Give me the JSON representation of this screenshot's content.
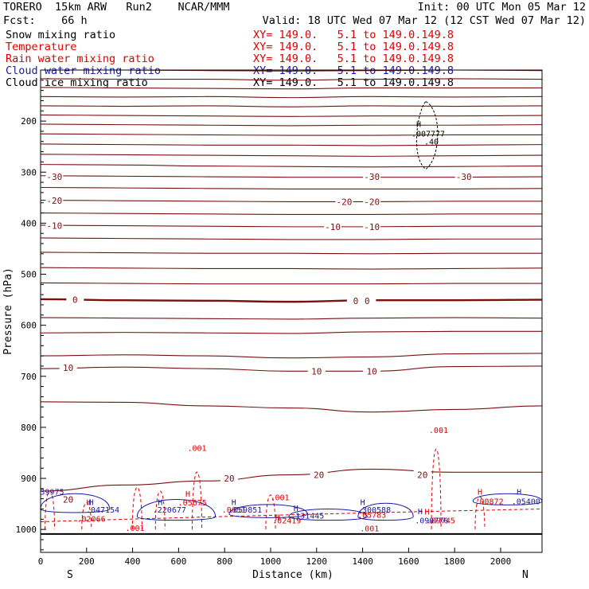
{
  "header": {
    "model": "TORERO  15km ARW   Run2    NCAR/MMM",
    "init": "Init: 00 UTC Mon 05 Mar 12",
    "fcst": "Fcst:    66 h",
    "valid": "Valid: 18 UTC Wed 07 Mar 12 (12 CST Wed 07 Mar 12)"
  },
  "legend": [
    {
      "label": "Snow mixing ratio",
      "xy": "XY= 149.0.   5.1 to 149.0.149.8",
      "color": "#000000"
    },
    {
      "label": "Temperature",
      "xy": "XY= 149.0.   5.1 to 149.0.149.8",
      "color": "#dd0000"
    },
    {
      "label": "Rain water mixing ratio",
      "xy": "XY= 149.0.   5.1 to 149.0.149.8",
      "color": "#dd0000"
    },
    {
      "label": "Cloud water mixing ratio",
      "xy": "XY= 149.0.   5.1 to 149.0.149.8",
      "color": "#1a1aaa"
    },
    {
      "label": "Cloud ice mixing ratio",
      "xy": "XY= 149.0.   5.1 to 149.0.149.8",
      "color": "#000000"
    }
  ],
  "chart_data": {
    "type": "cross-section contour",
    "xlabel": "Distance (km)",
    "ylabel": "Pressure (hPa)",
    "xlim": [
      0,
      2180
    ],
    "ylim": [
      1045,
      100
    ],
    "x_ticks": [
      0,
      200,
      400,
      600,
      800,
      1000,
      1200,
      1400,
      1600,
      1800,
      2000
    ],
    "y_ticks": [
      200,
      300,
      400,
      500,
      600,
      700,
      800,
      900,
      1000
    ],
    "x_end_labels": {
      "left": "S",
      "right": "N"
    },
    "temperature_color": "#7a1010",
    "temperature_contours": [
      {
        "pressure": [
          100,
          100,
          101,
          102,
          101,
          100,
          101
        ],
        "label": null
      },
      {
        "pressure": [
          117,
          118,
          118,
          120,
          118,
          117,
          118
        ],
        "label": null
      },
      {
        "pressure": [
          134,
          135,
          136,
          137,
          135,
          135,
          135
        ],
        "label": null
      },
      {
        "pressure": [
          152,
          153,
          152,
          154,
          152,
          153,
          152
        ],
        "label": null
      },
      {
        "pressure": [
          170,
          171,
          170,
          172,
          170,
          171,
          170
        ],
        "label": null
      },
      {
        "pressure": [
          188,
          189,
          190,
          191,
          190,
          190,
          189
        ],
        "label": null
      },
      {
        "pressure": [
          206,
          207,
          208,
          209,
          208,
          208,
          207
        ],
        "label": null
      },
      {
        "pressure": [
          225,
          226,
          227,
          228,
          228,
          227,
          227
        ],
        "label": null
      },
      {
        "pressure": [
          245,
          246,
          247,
          247,
          248,
          247,
          246
        ],
        "label": null
      },
      {
        "pressure": [
          265,
          266,
          267,
          268,
          269,
          268,
          267
        ],
        "label": null
      },
      {
        "pressure": [
          285,
          286,
          288,
          289,
          290,
          289,
          288
        ],
        "label": null
      },
      {
        "pressure": [
          307,
          308,
          309,
          310,
          310,
          310,
          309
        ],
        "label": "-30"
      },
      {
        "pressure": [
          330,
          331,
          332,
          333,
          333,
          333,
          332
        ],
        "label": null
      },
      {
        "pressure": [
          355,
          356,
          357,
          358,
          358,
          357,
          357
        ],
        "label": "-20"
      },
      {
        "pressure": [
          380,
          381,
          382,
          383,
          383,
          382,
          382
        ],
        "label": null
      },
      {
        "pressure": [
          404,
          405,
          406,
          407,
          407,
          406,
          406
        ],
        "label": "-10"
      },
      {
        "pressure": [
          429,
          430,
          431,
          432,
          432,
          431,
          431
        ],
        "label": null
      },
      {
        "pressure": [
          457,
          458,
          459,
          459,
          460,
          459,
          459
        ],
        "label": null
      },
      {
        "pressure": [
          487,
          488,
          489,
          489,
          490,
          489,
          488
        ],
        "label": null
      },
      {
        "pressure": [
          517,
          518,
          519,
          519,
          519,
          518,
          518
        ],
        "label": null
      },
      {
        "pressure": [
          549,
          551,
          552,
          554,
          551,
          551,
          550
        ],
        "label": "0"
      },
      {
        "pressure": [
          585,
          586,
          587,
          588,
          586,
          585,
          586
        ],
        "label": null
      },
      {
        "pressure": [
          615,
          614,
          615,
          616,
          613,
          612,
          612
        ],
        "label": null
      },
      {
        "pressure": [
          660,
          658,
          660,
          664,
          662,
          656,
          655
        ],
        "label": null
      },
      {
        "pressure": [
          685,
          682,
          685,
          690,
          690,
          681,
          680
        ],
        "label": "10"
      },
      {
        "pressure": [
          750,
          751,
          758,
          762,
          770,
          765,
          758
        ],
        "label": null
      },
      {
        "pressure": [
          925,
          913,
          905,
          893,
          882,
          888,
          888
        ],
        "label": "20"
      }
    ],
    "temperature_x": [
      0,
      360,
      720,
      1080,
      1440,
      1800,
      2180
    ],
    "temperature_labels": [
      {
        "text": "-30",
        "x": 60,
        "p": 309
      },
      {
        "text": "-30",
        "x": 1440,
        "p": 309
      },
      {
        "text": "-30",
        "x": 1840,
        "p": 309
      },
      {
        "text": "-20",
        "x": 60,
        "p": 356
      },
      {
        "text": "-20",
        "x": 1320,
        "p": 358
      },
      {
        "text": "-20",
        "x": 1440,
        "p": 358
      },
      {
        "text": "-10",
        "x": 60,
        "p": 405
      },
      {
        "text": "-10",
        "x": 1270,
        "p": 407
      },
      {
        "text": "-10",
        "x": 1440,
        "p": 407
      },
      {
        "text": "0",
        "x": 150,
        "p": 550
      },
      {
        "text": "0",
        "x": 1370,
        "p": 552
      },
      {
        "text": "0",
        "x": 1420,
        "p": 552
      },
      {
        "text": "10",
        "x": 120,
        "p": 683
      },
      {
        "text": "10",
        "x": 1200,
        "p": 690
      },
      {
        "text": "10",
        "x": 1440,
        "p": 690
      },
      {
        "text": "20",
        "x": 820,
        "p": 900
      },
      {
        "text": "20",
        "x": 1210,
        "p": 893
      },
      {
        "text": "20",
        "x": 1660,
        "p": 893
      },
      {
        "text": "20",
        "x": 120,
        "p": 941
      }
    ],
    "cloud_ice_max": {
      "label": "H",
      "value": ".007777",
      "x": 1640,
      "p": 224,
      "contour_label": ".40"
    },
    "rain_labels": [
      {
        "text": ".001",
        "x": 680,
        "p": 846
      },
      {
        "text": ".001",
        "x": 1730,
        "p": 811
      },
      {
        "text": ".001",
        "x": 410,
        "p": 1003
      },
      {
        "text": ".001",
        "x": 1430,
        "p": 1004
      },
      {
        "text": ".001",
        "x": 1040,
        "p": 943
      },
      {
        "text": "H",
        "x": 640,
        "p": 936
      },
      {
        "text": ".05675",
        "x": 660,
        "p": 953
      },
      {
        "text": "H",
        "x": 210,
        "p": 952
      },
      {
        "text": ".02066",
        "x": 220,
        "p": 985
      },
      {
        "text": ".0651",
        "x": 840,
        "p": 967
      },
      {
        "text": "H",
        "x": 1030,
        "p": 982
      },
      {
        "text": ".02419",
        "x": 1070,
        "p": 988
      },
      {
        "text": ".05783",
        "x": 1440,
        "p": 977
      },
      {
        "text": "H",
        "x": 1680,
        "p": 971
      },
      {
        "text": ".09745",
        "x": 1740,
        "p": 988
      },
      {
        "text": "H",
        "x": 1910,
        "p": 932
      },
      {
        "text": ".00872",
        "x": 1950,
        "p": 951
      }
    ],
    "cloud_water_labels": [
      {
        "text": "39975",
        "x": 50,
        "p": 932
      },
      {
        "text": "H",
        "x": 220,
        "p": 952
      },
      {
        "text": ".047154",
        "x": 270,
        "p": 967
      },
      {
        "text": "H",
        "x": 520,
        "p": 952
      },
      {
        "text": ".220677",
        "x": 560,
        "p": 967
      },
      {
        "text": "H",
        "x": 840,
        "p": 952
      },
      {
        "text": ".059851",
        "x": 890,
        "p": 967
      },
      {
        "text": "H",
        "x": 1110,
        "p": 964
      },
      {
        "text": ".131445",
        "x": 1160,
        "p": 979
      },
      {
        "text": "H",
        "x": 1400,
        "p": 952
      },
      {
        "text": ".300588",
        "x": 1450,
        "p": 967
      },
      {
        "text": "H",
        "x": 1650,
        "p": 970
      },
      {
        "text": ".090776",
        "x": 1700,
        "p": 988
      },
      {
        "text": "H",
        "x": 2080,
        "p": 932
      },
      {
        "text": ".05400",
        "x": 2110,
        "p": 951
      }
    ],
    "surface_pressure": 1009
  }
}
